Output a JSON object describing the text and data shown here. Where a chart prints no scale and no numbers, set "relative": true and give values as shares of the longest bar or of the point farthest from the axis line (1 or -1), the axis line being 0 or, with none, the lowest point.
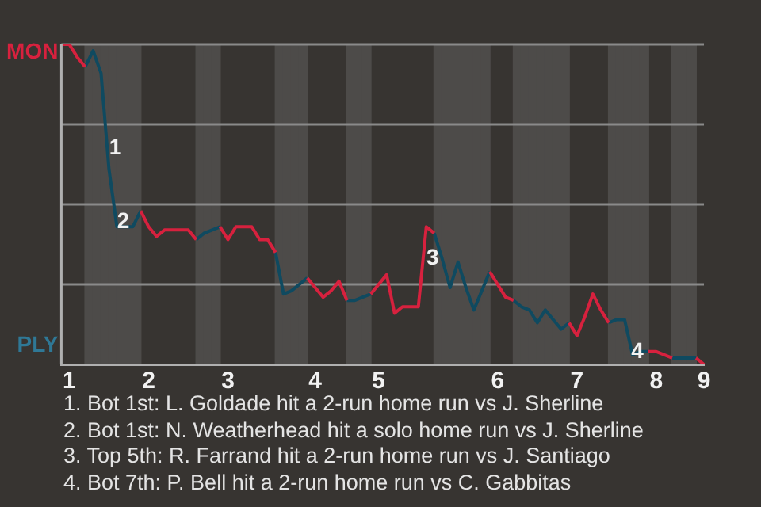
{
  "chart_data": {
    "type": "line",
    "relative": true,
    "categories": [
      null,
      "1",
      null,
      null,
      null,
      null,
      null,
      null,
      null,
      null,
      null,
      "2",
      null,
      null,
      null,
      null,
      null,
      null,
      null,
      null,
      null,
      "3",
      null,
      null,
      null,
      null,
      null,
      null,
      null,
      null,
      null,
      null,
      "4",
      null,
      null,
      null,
      null,
      null,
      null,
      null,
      "5",
      null,
      null,
      null,
      null,
      null,
      null,
      null,
      null,
      null,
      null,
      null,
      null,
      null,
      null,
      "6",
      null,
      null,
      null,
      null,
      null,
      null,
      null,
      null,
      null,
      "7",
      null,
      null,
      null,
      null,
      null,
      null,
      null,
      null,
      null,
      "8",
      null,
      null,
      null,
      null,
      null,
      "9"
    ],
    "series": [
      {
        "color": "#d7213e",
        "values": [
          1,
          1,
          0.96,
          0.93,
          null,
          null,
          null,
          null,
          null,
          null,
          0.48,
          0.43,
          0.4,
          0.42,
          0.42,
          0.42,
          0.42,
          0.39,
          null,
          null,
          0.43,
          0.39,
          0.43,
          0.43,
          0.43,
          0.39,
          0.39,
          0.35,
          null,
          null,
          null,
          0.27,
          0.24,
          0.21,
          0.23,
          0.26,
          0.2,
          null,
          null,
          0.22,
          0.25,
          0.28,
          0.16,
          0.18,
          0.18,
          0.18,
          0.43,
          0.41,
          null,
          null,
          null,
          null,
          null,
          null,
          0.29,
          0.25,
          0.21,
          0.2,
          null,
          null,
          null,
          null,
          null,
          null,
          0.13,
          0.09,
          0.15,
          0.22,
          0.17,
          0.13,
          null,
          null,
          null,
          null,
          0.04,
          0.04,
          0.03,
          0.02,
          null,
          null,
          0.02,
          0
        ]
      },
      {
        "color": "#0f4a60",
        "values": [
          null,
          null,
          null,
          0.93,
          0.98,
          0.91,
          0.61,
          0.43,
          0.43,
          0.43,
          0.48,
          null,
          null,
          null,
          null,
          null,
          null,
          0.39,
          0.41,
          0.42,
          0.43,
          null,
          null,
          null,
          null,
          null,
          null,
          0.35,
          0.22,
          0.23,
          0.25,
          0.27,
          null,
          null,
          null,
          null,
          0.2,
          0.2,
          0.21,
          0.22,
          null,
          null,
          null,
          null,
          null,
          null,
          null,
          0.41,
          0.33,
          0.24,
          0.32,
          0.24,
          0.17,
          0.23,
          0.29,
          null,
          null,
          0.2,
          0.18,
          0.17,
          0.13,
          0.17,
          0.14,
          0.11,
          0.13,
          null,
          null,
          null,
          null,
          0.13,
          0.14,
          0.14,
          0.03,
          0.04,
          0.04,
          null,
          null,
          0.02,
          0.02,
          0.02,
          0.02,
          null
        ]
      }
    ],
    "grid": "y",
    "legend": false,
    "marker": "none",
    "line_style": "solid",
    "annotations": [
      "MON",
      "PLY",
      "1",
      "2",
      "3",
      "4",
      "1. Bot 1st: L. Goldade hit a 2-run home run vs J. Sherline",
      "2. Bot 1st: N. Weatherhead hit a solo home run vs J. Sherline",
      "3. Top 5th: R. Farrand hit a 2-run home run vs J. Santiago",
      "4. Bot 7th: P. Bell hit a 2-run home run vs C. Gabbitas"
    ]
  }
}
